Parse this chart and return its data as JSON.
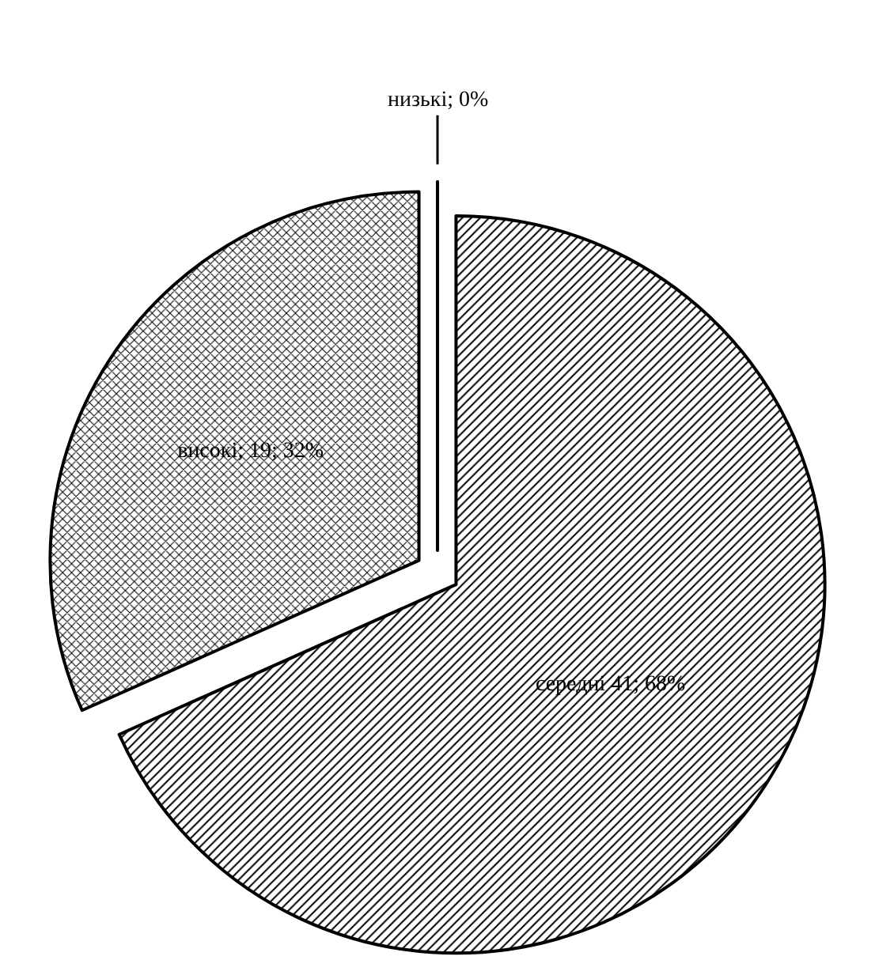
{
  "chart_data": {
    "type": "pie",
    "categories": [
      "низькі",
      "середні",
      "високі"
    ],
    "values": [
      0,
      41,
      19
    ],
    "value_labels": [
      "; 0%",
      " 41; 68%",
      "; 19; 32%"
    ],
    "colors": [
      "#000000",
      "#000000",
      "#000000"
    ]
  }
}
